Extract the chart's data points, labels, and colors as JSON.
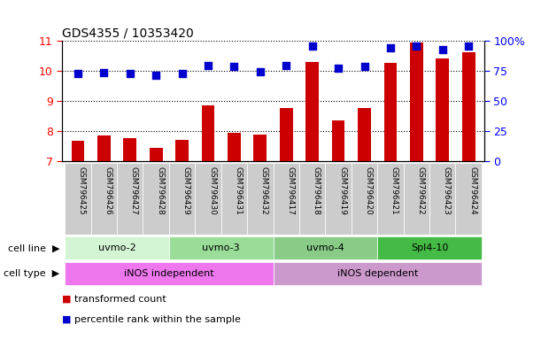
{
  "title": "GDS4355 / 10353420",
  "samples": [
    "GSM796425",
    "GSM796426",
    "GSM796427",
    "GSM796428",
    "GSM796429",
    "GSM796430",
    "GSM796431",
    "GSM796432",
    "GSM796417",
    "GSM796418",
    "GSM796419",
    "GSM796420",
    "GSM796421",
    "GSM796422",
    "GSM796423",
    "GSM796424"
  ],
  "transformed_count": [
    7.7,
    7.85,
    7.78,
    7.45,
    7.73,
    8.85,
    7.95,
    7.88,
    8.78,
    10.3,
    8.35,
    8.78,
    10.27,
    10.95,
    10.42,
    10.62
  ],
  "percentile_rank": [
    73.0,
    73.5,
    73.2,
    71.8,
    73.0,
    79.5,
    79.0,
    74.5,
    79.2,
    95.5,
    77.5,
    78.5,
    94.5,
    96.0,
    93.0,
    95.5
  ],
  "cell_line_groups": [
    {
      "label": "uvmo-2",
      "start": 0,
      "end": 4,
      "color": "#d4f5d4"
    },
    {
      "label": "uvmo-3",
      "start": 4,
      "end": 8,
      "color": "#99dd99"
    },
    {
      "label": "uvmo-4",
      "start": 8,
      "end": 12,
      "color": "#88cc88"
    },
    {
      "label": "Spl4-10",
      "start": 12,
      "end": 16,
      "color": "#44bb44"
    }
  ],
  "cell_type_groups": [
    {
      "label": "iNOS independent",
      "start": 0,
      "end": 8,
      "color": "#ee77ee"
    },
    {
      "label": "iNOS dependent",
      "start": 8,
      "end": 16,
      "color": "#cc99cc"
    }
  ],
  "ylim_left": [
    7,
    11
  ],
  "ylim_right": [
    0,
    100
  ],
  "yticks_left": [
    7,
    8,
    9,
    10,
    11
  ],
  "yticks_right": [
    0,
    25,
    50,
    75,
    100
  ],
  "bar_color": "#cc0000",
  "dot_color": "#0000cc",
  "background_color": "#ffffff",
  "bar_width": 0.5,
  "dot_size": 35,
  "label_bg": "#cccccc"
}
